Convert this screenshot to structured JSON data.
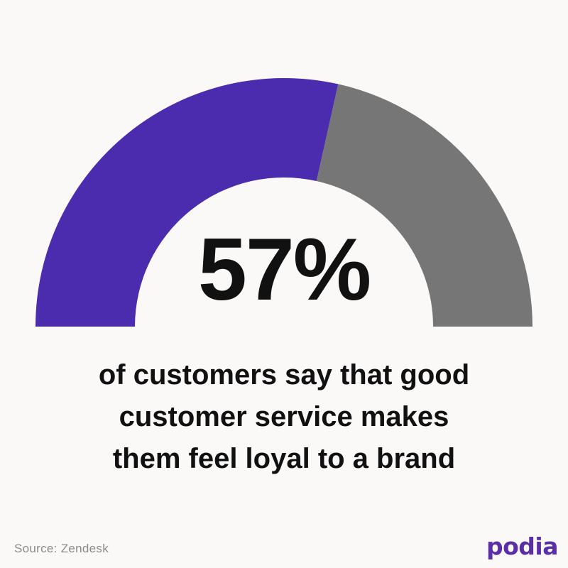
{
  "chart_data": {
    "type": "gauge",
    "value": 57,
    "max": 100,
    "value_label": "57%",
    "caption_lines": [
      "of customers say that good",
      "customer service makes",
      "them feel loyal to a brand"
    ],
    "source": "Source: Zendesk",
    "series": [
      {
        "name": "",
        "value": 57,
        "color": "#4b2bae"
      },
      {
        "name": "",
        "value": 43,
        "color": "#767676"
      }
    ]
  },
  "brand": {
    "logo_text": "podia",
    "color": "#5a2ea6"
  }
}
